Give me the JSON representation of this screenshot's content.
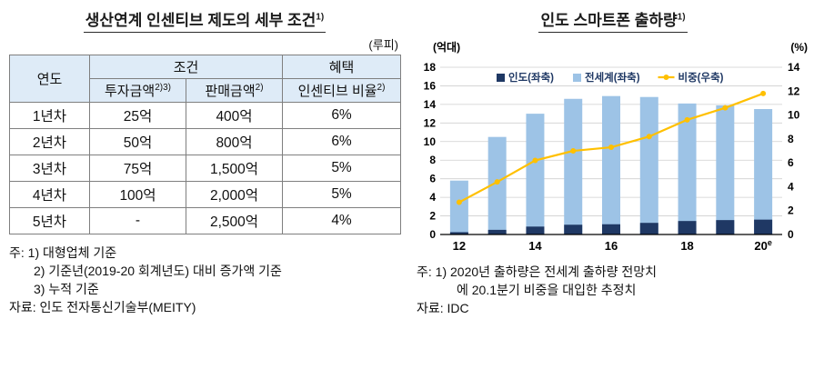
{
  "left": {
    "title": "생산연계 인센티브 제도의 세부 조건",
    "title_sup": "1)",
    "unit": "(루피)",
    "table": {
      "col_year": "연도",
      "col_condition": "조건",
      "col_benefit": "혜택",
      "col_invest": "투자금액",
      "col_invest_sup": "2)3)",
      "col_sales": "판매금액",
      "col_sales_sup": "2)",
      "col_incentive": "인센티브 비율",
      "col_incentive_sup": "2)",
      "rows": [
        {
          "year": "1년차",
          "invest": "25억",
          "sales": "400억",
          "rate": "6%"
        },
        {
          "year": "2년차",
          "invest": "50억",
          "sales": "800억",
          "rate": "6%"
        },
        {
          "year": "3년차",
          "invest": "75억",
          "sales": "1,500억",
          "rate": "5%"
        },
        {
          "year": "4년차",
          "invest": "100억",
          "sales": "2,000억",
          "rate": "5%"
        },
        {
          "year": "5년차",
          "invest": "-",
          "sales": "2,500억",
          "rate": "4%"
        }
      ]
    },
    "notes": [
      "주: 1) 대형업체 기준",
      "2) 기준년(2019-20 회계년도) 대비 증가액 기준",
      "3) 누적 기준"
    ],
    "source": "자료: 인도 전자통신기술부(MEITY)"
  },
  "right": {
    "title": "인도 스마트폰 출하량",
    "title_sup": "1)",
    "notes": [
      "주: 1) 2020년 출하량은 전세계 출하량 전망치",
      "에 20.1분기 비중을 대입한 추정치"
    ],
    "source": "자료: IDC"
  },
  "chart_data": {
    "type": "bar",
    "title": "인도 스마트폰 출하량",
    "x": [
      "12",
      "13",
      "14",
      "15",
      "16",
      "17",
      "18",
      "19",
      "20e"
    ],
    "x_ticks": [
      {
        "at": "12",
        "label": "12"
      },
      {
        "at": "14",
        "label": "14"
      },
      {
        "at": "16",
        "label": "16"
      },
      {
        "at": "18",
        "label": "18"
      },
      {
        "at": "20e",
        "label": "20",
        "sup": "e"
      }
    ],
    "series": [
      {
        "name": "인도(좌축)",
        "type": "bar",
        "axis": "left",
        "color": "#1F3864",
        "values": [
          0.25,
          0.5,
          0.85,
          1.05,
          1.1,
          1.25,
          1.45,
          1.55,
          1.6
        ]
      },
      {
        "name": "전세계(좌축)",
        "type": "bar",
        "axis": "left",
        "color": "#9DC3E6",
        "values": [
          5.8,
          10.5,
          13.0,
          14.6,
          14.9,
          14.8,
          14.1,
          13.9,
          13.5
        ]
      },
      {
        "name": "비중(우축)",
        "type": "line",
        "axis": "right",
        "color": "#FFC000",
        "values": [
          2.7,
          4.4,
          6.2,
          7.0,
          7.3,
          8.2,
          9.6,
          10.6,
          11.8
        ]
      }
    ],
    "left_axis": {
      "label": "(억대)",
      "min": 0,
      "max": 18,
      "step": 2
    },
    "right_axis": {
      "label": "(%)",
      "min": 0,
      "max": 14,
      "step": 2
    },
    "grid": true,
    "legend_position": "top-inside"
  }
}
